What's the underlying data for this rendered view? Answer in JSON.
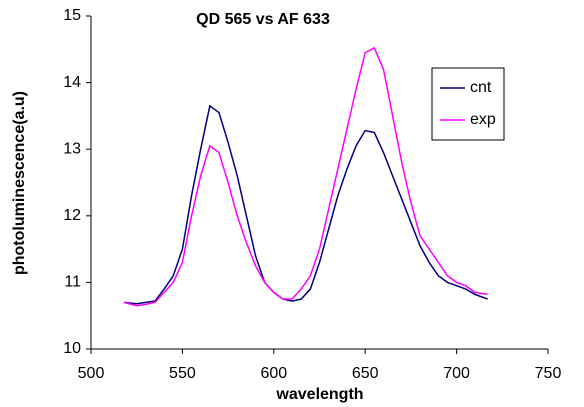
{
  "chart_data": {
    "type": "line",
    "title": "QD 565 vs AF 633",
    "x_label": "wavelength",
    "y_label": "photoluminescence(a.u)",
    "x": [
      518,
      525,
      530,
      535,
      540,
      545,
      550,
      555,
      560,
      565,
      570,
      575,
      580,
      585,
      590,
      595,
      600,
      605,
      610,
      615,
      620,
      625,
      630,
      635,
      640,
      645,
      650,
      655,
      660,
      665,
      670,
      675,
      680,
      685,
      690,
      695,
      700,
      705,
      710,
      717
    ],
    "series": [
      {
        "name": "cnt",
        "color": "#000080",
        "values": [
          10.7,
          10.68,
          10.7,
          10.72,
          10.9,
          11.1,
          11.5,
          12.3,
          13.0,
          13.65,
          13.55,
          13.1,
          12.6,
          12.0,
          11.4,
          11.0,
          10.85,
          10.75,
          10.72,
          10.75,
          10.9,
          11.3,
          11.8,
          12.3,
          12.7,
          13.05,
          13.28,
          13.25,
          12.95,
          12.6,
          12.25,
          11.9,
          11.55,
          11.3,
          11.1,
          11.0,
          10.95,
          10.9,
          10.82,
          10.75
        ]
      },
      {
        "name": "exp",
        "color": "#ff00ff",
        "values": [
          10.7,
          10.65,
          10.67,
          10.7,
          10.85,
          11.0,
          11.3,
          12.0,
          12.6,
          13.05,
          12.95,
          12.5,
          12.0,
          11.6,
          11.25,
          11.0,
          10.85,
          10.75,
          10.75,
          10.9,
          11.1,
          11.5,
          12.1,
          12.7,
          13.3,
          13.9,
          14.45,
          14.52,
          14.2,
          13.5,
          12.8,
          12.2,
          11.7,
          11.5,
          11.3,
          11.1,
          11.0,
          10.95,
          10.85,
          10.82
        ]
      }
    ],
    "xlim": [
      500,
      750
    ],
    "xticks": [
      500,
      550,
      600,
      650,
      700,
      750
    ],
    "ylim": [
      10,
      15
    ],
    "yticks": [
      10,
      11,
      12,
      13,
      14,
      15
    ]
  }
}
